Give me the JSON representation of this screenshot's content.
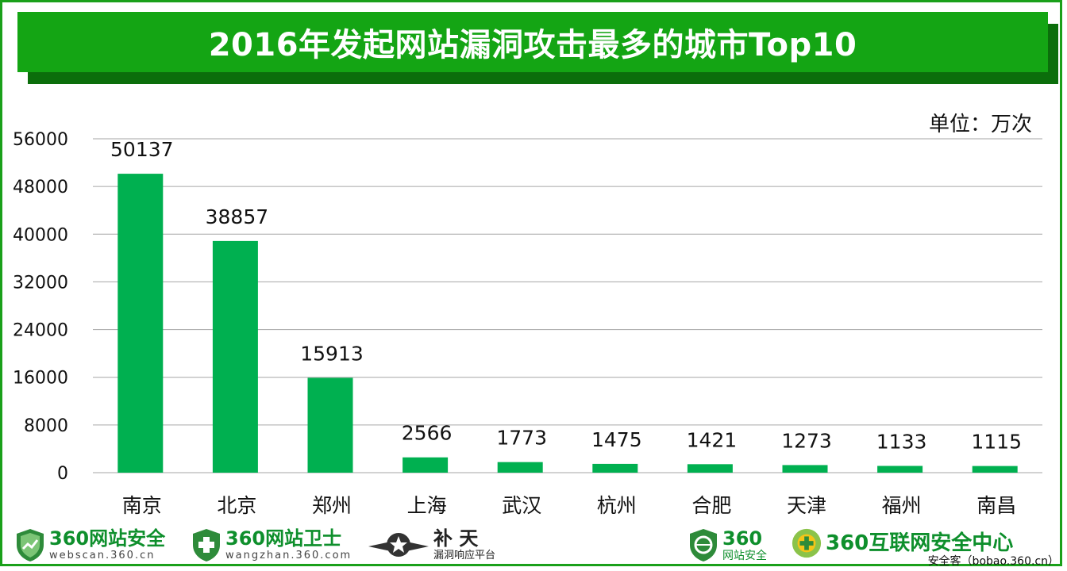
{
  "title": "2016年发起网站漏洞攻击最多的城市Top10",
  "unit": "单位：万次",
  "colors": {
    "bar": "#00b050",
    "grid": "#a6a6a6",
    "banner": "#14a514",
    "banner_shadow": "#0b6e0b"
  },
  "chart_data": {
    "type": "bar",
    "categories": [
      "南京",
      "北京",
      "郑州",
      "上海",
      "武汉",
      "杭州",
      "合肥",
      "天津",
      "福州",
      "南昌"
    ],
    "values": [
      50137,
      38857,
      15913,
      2566,
      1773,
      1475,
      1421,
      1273,
      1133,
      1115
    ],
    "yticks": [
      "0",
      "8000",
      "16000",
      "24000",
      "32000",
      "40000",
      "48000",
      "56000"
    ],
    "ylim": [
      0,
      56000
    ],
    "grid": true,
    "legend": "none"
  },
  "footer": {
    "logos": [
      {
        "name": "360网站安全",
        "sub": "webscan.360.cn",
        "icon": "shield-chart-icon"
      },
      {
        "name": "360网站卫士",
        "sub": "wangzhan.360.com",
        "icon": "shield-plus-icon"
      },
      {
        "name": "补 天",
        "sub": "漏洞响应平台",
        "icon": "star-wings-icon"
      },
      {
        "name": "360",
        "sub": "网站安全",
        "icon": "shield-globe-icon"
      },
      {
        "name": "360互联网安全中心",
        "sub": "",
        "icon": "plus-circle-icon"
      }
    ],
    "source": "安全客（bobao.360.cn）"
  }
}
